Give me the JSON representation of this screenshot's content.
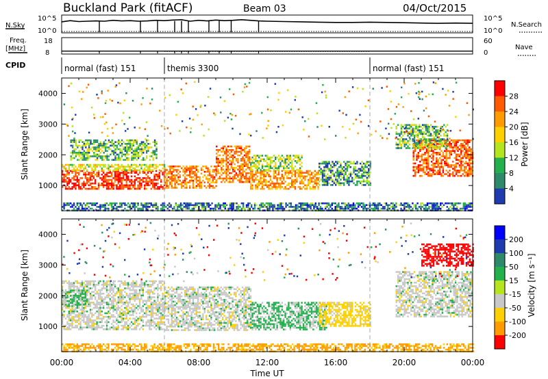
{
  "header": {
    "site": "Buckland Park (fitACF)",
    "beam": "Beam 03",
    "date": "04/Oct/2015"
  },
  "side_labels": {
    "nsky": "N.Sky",
    "freq_line1": "Freq.",
    "freq_line2": "[MHz]",
    "cpid": "CPID",
    "nsearch": "N.Search",
    "nave": "Nave"
  },
  "cpid_segments": [
    {
      "start_hour": 0,
      "label": "normal (fast) 151"
    },
    {
      "start_hour": 6,
      "label": "themis 3300"
    },
    {
      "start_hour": 18,
      "label": "normal (fast) 151"
    }
  ],
  "chart_data": [
    {
      "type": "line",
      "panel": "noise",
      "left_axis": {
        "label": "N.Sky",
        "ticks": [
          "10^5",
          "10^0"
        ]
      },
      "right_axis": {
        "label": "N.Search",
        "ticks": [
          "10^5",
          "10^0"
        ]
      },
      "x": [
        0,
        0.5,
        1,
        1.5,
        2,
        2.5,
        3,
        3.5,
        4,
        4.5,
        5,
        5.5,
        6,
        6.5,
        7,
        7.5,
        8,
        8.5,
        9,
        9.5,
        10,
        10.5,
        11,
        11.5,
        12,
        13,
        14,
        15,
        16,
        17,
        18,
        19,
        20,
        21,
        22,
        23,
        24
      ],
      "sky_log": [
        3.2,
        3.6,
        3.3,
        3.4,
        3.5,
        3.4,
        3.7,
        3.5,
        3.6,
        3.4,
        3.5,
        3.7,
        3.6,
        3.8,
        3.9,
        3.4,
        3.7,
        3.5,
        3.8,
        3.6,
        3.7,
        3.9,
        3.7,
        3.5,
        3.4,
        3.3,
        3.2,
        3.1,
        3.0,
        3.0,
        3.1,
        3.0,
        2.9,
        2.8,
        2.7,
        2.8,
        2.7
      ],
      "dropouts_hour": [
        2.2,
        4.6,
        5.6,
        6.6,
        7.0,
        7.4,
        8.6,
        9.2,
        9.9,
        11.5
      ]
    },
    {
      "type": "line",
      "panel": "frequency",
      "left_axis": {
        "label": "Freq. [MHz]",
        "ticks": [
          "18",
          "8"
        ]
      },
      "right_axis": {
        "label": "Nave",
        "ticks": [
          "60",
          "0"
        ]
      },
      "freq_mhz": 9.5,
      "nave_typical": 8
    },
    {
      "type": "heatmap",
      "panel": "power",
      "xlabel": "",
      "ylabel": "Slant Range [km]",
      "xlim_hours": [
        0,
        24
      ],
      "ylim_km": [
        180,
        4500
      ],
      "x_ticks": [
        "00:00",
        "04:00",
        "08:00",
        "12:00",
        "16:00",
        "20:00",
        "00:00"
      ],
      "y_ticks": [
        1000,
        2000,
        3000,
        4000
      ],
      "colorbar": {
        "label": "Power [dB]",
        "ticks": [
          "28",
          "24",
          "20",
          "16",
          "12",
          "8",
          "4"
        ],
        "colors": [
          "#ff0000",
          "#ff5a00",
          "#ff9c00",
          "#ffd000",
          "#b5e61d",
          "#22b14c",
          "#2d8a6b",
          "#1e3cb0",
          "#0000ff"
        ]
      },
      "regions": [
        {
          "t0": 0.0,
          "t1": 6.0,
          "r0": 900,
          "r1": 1500,
          "level": 28
        },
        {
          "t0": 0.0,
          "t1": 6.0,
          "r0": 1500,
          "r1": 1700,
          "level": 16
        },
        {
          "t0": 0.5,
          "t1": 5.5,
          "r0": 1850,
          "r1": 2500,
          "level": 12
        },
        {
          "t0": 6.0,
          "t1": 9.0,
          "r0": 950,
          "r1": 1650,
          "level": 24
        },
        {
          "t0": 9.0,
          "t1": 11.0,
          "r0": 1100,
          "r1": 2300,
          "level": 24
        },
        {
          "t0": 11.0,
          "t1": 15.0,
          "r0": 900,
          "r1": 1500,
          "level": 22
        },
        {
          "t0": 11.0,
          "t1": 14.0,
          "r0": 1500,
          "r1": 2000,
          "level": 14
        },
        {
          "t0": 15.0,
          "t1": 18.0,
          "r0": 1000,
          "r1": 1800,
          "level": 10
        },
        {
          "t0": 20.5,
          "t1": 24.0,
          "r0": 1300,
          "r1": 2500,
          "level": 26
        },
        {
          "t0": 19.5,
          "t1": 22.5,
          "r0": 2200,
          "r1": 3000,
          "level": 12
        },
        {
          "t0": 0.0,
          "t1": 24.0,
          "r0": 180,
          "r1": 450,
          "level": 8
        }
      ]
    },
    {
      "type": "heatmap",
      "panel": "velocity",
      "xlabel": "Time UT",
      "ylabel": "Slant Range [km]",
      "xlim_hours": [
        0,
        24
      ],
      "ylim_km": [
        180,
        4500
      ],
      "x_ticks": [
        "00:00",
        "04:00",
        "08:00",
        "12:00",
        "16:00",
        "20:00",
        "00:00"
      ],
      "y_ticks": [
        1000,
        2000,
        3000,
        4000
      ],
      "colorbar": {
        "label": "Velocity [m s⁻¹]",
        "ticks": [
          "200",
          "100",
          "50",
          "15",
          "-15",
          "-50",
          "-100",
          "-200"
        ],
        "colors": [
          "#0000ff",
          "#1e3cb0",
          "#2d8a6b",
          "#22b14c",
          "#b5e61d",
          "#c8c8c8",
          "#ffd000",
          "#ff9c00",
          "#ff0000"
        ]
      },
      "regions": [
        {
          "t0": 0.0,
          "t1": 6.0,
          "r0": 900,
          "r1": 2500,
          "level": 0
        },
        {
          "t0": 0.0,
          "t1": 1.5,
          "r0": 1700,
          "r1": 2200,
          "level": 30
        },
        {
          "t0": 6.0,
          "t1": 11.0,
          "r0": 900,
          "r1": 2300,
          "level": 0
        },
        {
          "t0": 11.0,
          "t1": 15.5,
          "r0": 900,
          "r1": 1800,
          "level": 20
        },
        {
          "t0": 15.0,
          "t1": 18.0,
          "r0": 1000,
          "r1": 1800,
          "level": -30
        },
        {
          "t0": 19.5,
          "t1": 24.0,
          "r0": 1300,
          "r1": 2800,
          "level": 0
        },
        {
          "t0": 21.0,
          "t1": 24.0,
          "r0": 3000,
          "r1": 3700,
          "level": -200
        },
        {
          "t0": 0.0,
          "t1": 24.0,
          "r0": 180,
          "r1": 450,
          "level": -60
        }
      ]
    }
  ]
}
